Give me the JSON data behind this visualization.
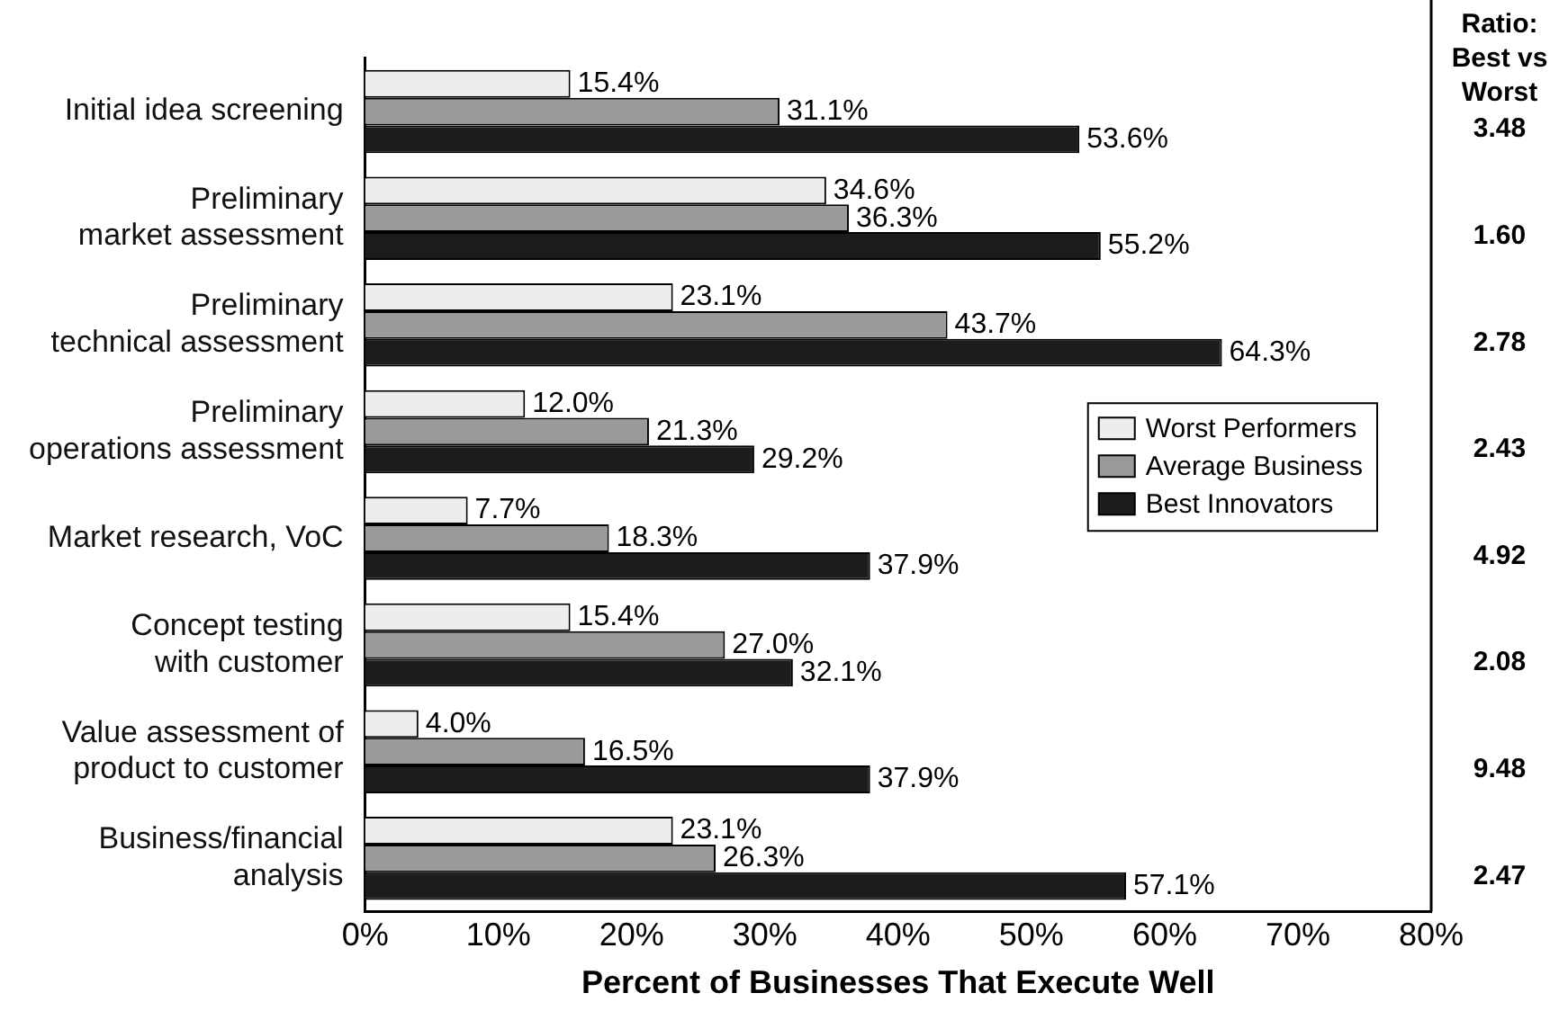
{
  "chart_data": {
    "type": "bar",
    "orientation": "horizontal",
    "xlabel": "Percent of Businesses That Execute Well",
    "categories": [
      "Initial idea screening",
      "Preliminary market assessment",
      "Preliminary technical assessment",
      "Preliminary operations assessment",
      "Market research, VoC",
      "Concept testing with customer",
      "Value assessment of product to customer",
      "Business/financial analysis"
    ],
    "series": [
      {
        "name": "Worst Performers",
        "color": "#ededed",
        "values": [
          15.4,
          34.6,
          23.1,
          12.0,
          7.7,
          15.4,
          4.0,
          23.1
        ],
        "value_labels": [
          "15.4%",
          "34.6%",
          "23.1%",
          "12.0%",
          "7.7%",
          "15.4%",
          "4.0%",
          "23.1%"
        ]
      },
      {
        "name": "Average Business",
        "color": "#9a9a9a",
        "values": [
          31.1,
          36.3,
          43.7,
          21.3,
          18.3,
          27.0,
          16.5,
          26.3
        ],
        "value_labels": [
          "31.1%",
          "36.3%",
          "43.7%",
          "21.3%",
          "18.3%",
          "27.0%",
          "16.5%",
          "26.3%"
        ]
      },
      {
        "name": "Best Innovators",
        "color": "#1c1c1c",
        "values": [
          53.6,
          55.2,
          64.3,
          29.2,
          37.9,
          32.1,
          37.9,
          57.1
        ],
        "value_labels": [
          "53.6%",
          "55.2%",
          "64.3%",
          "29.2%",
          "37.9%",
          "32.1%",
          "37.9%",
          "57.1%"
        ]
      }
    ],
    "xlim": [
      0,
      80
    ],
    "xticks": [
      {
        "value": 0,
        "label": "0%"
      },
      {
        "value": 10,
        "label": "10%"
      },
      {
        "value": 20,
        "label": "20%"
      },
      {
        "value": 30,
        "label": "30%"
      },
      {
        "value": 40,
        "label": "40%"
      },
      {
        "value": 50,
        "label": "50%"
      },
      {
        "value": 60,
        "label": "60%"
      },
      {
        "value": 70,
        "label": "70%"
      },
      {
        "value": 80,
        "label": "80%"
      }
    ],
    "grid": false,
    "legend": "right",
    "annotations": [
      "Ratio: Best vs Worst",
      "3.48",
      "1.60",
      "2.78",
      "2.43",
      "4.92",
      "2.08",
      "9.48",
      "2.47"
    ]
  }
}
